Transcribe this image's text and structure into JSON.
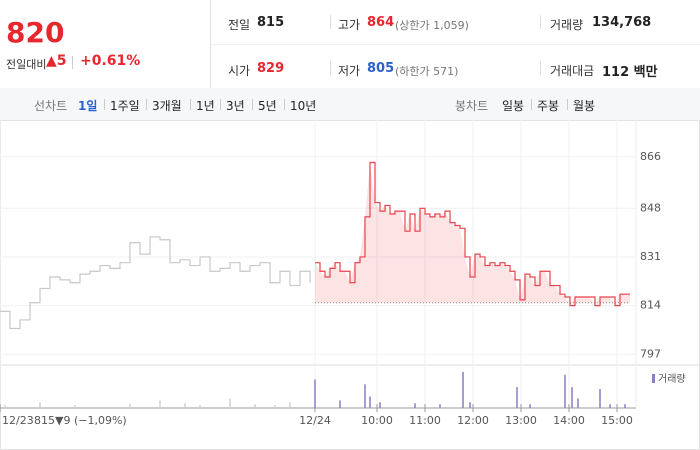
{
  "header": {
    "price": "820",
    "change_label": "전일대비",
    "change": "▲5",
    "change_pct": "+0.61%",
    "prev_label": "전일",
    "prev": "815",
    "high_label": "고가",
    "high": "864",
    "upper": "(상한가 1,059)",
    "volume_label": "거래량",
    "volume": "134,768",
    "open_label": "시가",
    "open": "829",
    "low_label": "저가",
    "low": "805",
    "lower": "(하한가 571)",
    "amount_label": "거래대금",
    "amount": "112 백만"
  },
  "tabs": {
    "line_label": "선차트",
    "line": [
      "1일",
      "1주일",
      "3개월",
      "1년",
      "3년",
      "5년",
      "10년"
    ],
    "candle_label": "봉차트",
    "candle": [
      "일봉",
      "주봉",
      "월봉"
    ]
  },
  "chart_data": {
    "type": "line",
    "xlim": [
      0,
      127
    ],
    "ylim": [
      795,
      875
    ],
    "yticks": [
      866,
      848,
      831,
      814,
      797
    ],
    "xticks": [
      {
        "value": 0,
        "label": "12/23"
      },
      {
        "value": 63,
        "label": "12/24"
      },
      {
        "value": 75.4,
        "label": "10:00"
      },
      {
        "value": 85,
        "label": "11:00"
      },
      {
        "value": 94.6,
        "label": "12:00"
      },
      {
        "value": 104.2,
        "label": "13:00"
      },
      {
        "value": 113.8,
        "label": "14:00"
      },
      {
        "value": 123.4,
        "label": "15:00"
      }
    ],
    "prev_close": 815,
    "prev_change": "▼9 (−1,09%)",
    "series": [
      {
        "color": "#c8c8c8",
        "x": [
          0,
          2,
          4,
          6,
          8,
          10,
          12,
          14,
          16,
          18,
          20,
          22,
          24,
          26,
          28,
          30,
          32,
          34,
          36,
          38,
          40,
          42,
          44,
          46,
          48,
          50,
          52,
          54,
          56,
          58,
          60,
          62
        ],
        "values": [
          812,
          806,
          809,
          815,
          820,
          824,
          823,
          822,
          825,
          826,
          828,
          827,
          829,
          836,
          832,
          838,
          837,
          829,
          830,
          828,
          831,
          826,
          827,
          829,
          826,
          828,
          829,
          822,
          826,
          821,
          826,
          822
        ]
      },
      {
        "color": "#e8424b",
        "x": [
          63,
          64,
          65,
          66,
          67,
          68,
          69,
          70,
          71,
          72,
          73,
          74,
          75,
          76,
          77,
          78,
          79,
          80,
          81,
          82,
          83,
          84,
          85,
          86,
          87,
          88,
          89,
          90,
          91,
          92,
          93,
          94,
          95,
          96,
          97,
          98,
          99,
          100,
          101,
          102,
          103,
          104,
          105,
          106,
          107,
          108,
          109,
          110,
          111,
          112,
          113,
          114,
          115,
          116,
          117,
          118,
          119,
          120,
          121,
          122,
          123,
          124,
          125,
          126
        ],
        "values": [
          829,
          826,
          824,
          827,
          829,
          826,
          826,
          822,
          829,
          831,
          845,
          864,
          850,
          847,
          849,
          846,
          847,
          847,
          840,
          846,
          840,
          848,
          846,
          845,
          846,
          845,
          847,
          843,
          842,
          841,
          831,
          824,
          832,
          831,
          828,
          829,
          828,
          829,
          828,
          826,
          823,
          816,
          825,
          824,
          821,
          826,
          826,
          821,
          821,
          818,
          817,
          814,
          817,
          817,
          817,
          817,
          814,
          817,
          817,
          817,
          814,
          818,
          818,
          818
        ]
      }
    ],
    "volume": {
      "name": "거래량",
      "color": "#8e7cc3",
      "ylim": [
        0,
        40
      ],
      "x": [
        1,
        8,
        15,
        26,
        32,
        37,
        40,
        46,
        51,
        55,
        58,
        63,
        68,
        73,
        74,
        76,
        83,
        88,
        92.6,
        94,
        103.4,
        106,
        113,
        114.4,
        115.6,
        120,
        122,
        125
      ],
      "values": [
        3,
        6,
        3,
        4,
        8,
        5,
        3,
        10,
        4,
        3,
        6,
        30,
        8,
        25,
        12,
        6,
        5,
        4,
        38,
        6,
        22,
        4,
        35,
        22,
        10,
        20,
        4,
        4
      ]
    }
  }
}
